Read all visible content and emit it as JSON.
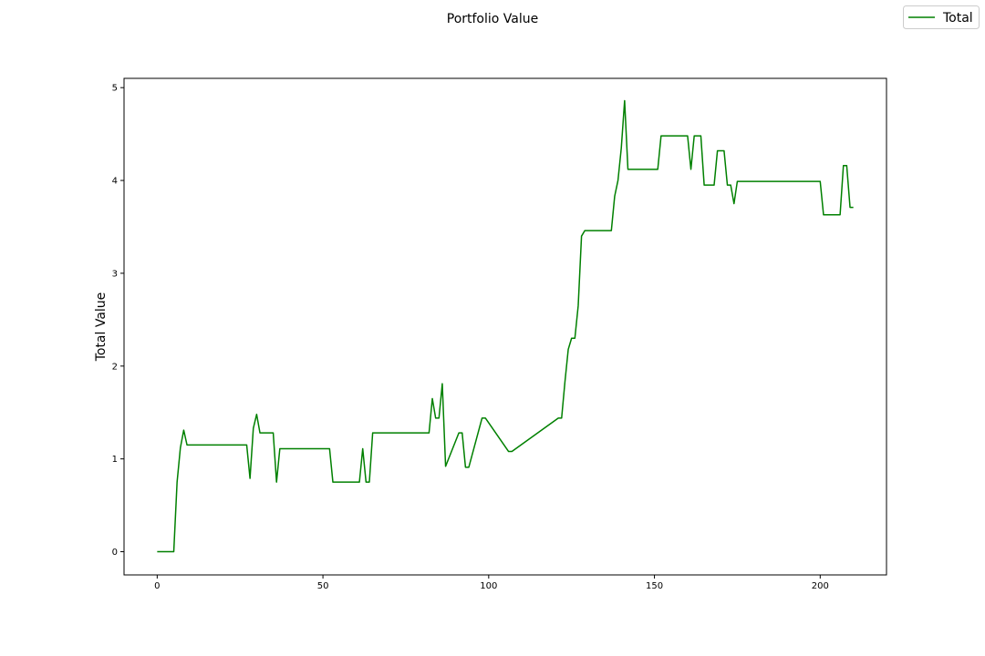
{
  "chart_data": {
    "type": "line",
    "title": "Portfolio Value",
    "xlabel": "",
    "ylabel": "Total Value",
    "xlim": [
      -10,
      220
    ],
    "ylim": [
      -0.25,
      5.1
    ],
    "xticks": [
      0,
      50,
      100,
      150,
      200
    ],
    "yticks": [
      0,
      1,
      2,
      3,
      4,
      5
    ],
    "grid": false,
    "legend": "top-right",
    "series": [
      {
        "name": "Total",
        "color": "#008000",
        "x": [
          0,
          5,
          6,
          7,
          8,
          9,
          10,
          27,
          28,
          29,
          30,
          31,
          35,
          36,
          37,
          52,
          53,
          61,
          62,
          63,
          64,
          65,
          82,
          83,
          84,
          85,
          86,
          87,
          91,
          92,
          93,
          94,
          98,
          99,
          106,
          107,
          121,
          122,
          123,
          124,
          125,
          126,
          127,
          128,
          129,
          137,
          138,
          139,
          140,
          141,
          142,
          151,
          152,
          160,
          161,
          162,
          164,
          165,
          168,
          169,
          171,
          172,
          173,
          174,
          175,
          200,
          201,
          206,
          207,
          208,
          209,
          210
        ],
        "y": [
          0,
          0,
          0.75,
          1.12,
          1.31,
          1.15,
          1.15,
          1.15,
          0.79,
          1.33,
          1.48,
          1.28,
          1.28,
          0.75,
          1.11,
          1.11,
          0.75,
          0.75,
          1.11,
          0.75,
          0.75,
          1.28,
          1.28,
          1.65,
          1.44,
          1.44,
          1.81,
          0.92,
          1.28,
          1.28,
          0.91,
          0.91,
          1.44,
          1.44,
          1.08,
          1.08,
          1.44,
          1.44,
          1.83,
          2.18,
          2.3,
          2.3,
          2.65,
          3.4,
          3.46,
          3.46,
          3.83,
          4.0,
          4.35,
          4.86,
          4.12,
          4.12,
          4.48,
          4.48,
          4.12,
          4.48,
          4.48,
          3.95,
          3.95,
          4.32,
          4.32,
          3.95,
          3.95,
          3.75,
          3.99,
          3.99,
          3.63,
          3.63,
          4.16,
          4.16,
          3.71,
          3.71
        ]
      }
    ]
  }
}
